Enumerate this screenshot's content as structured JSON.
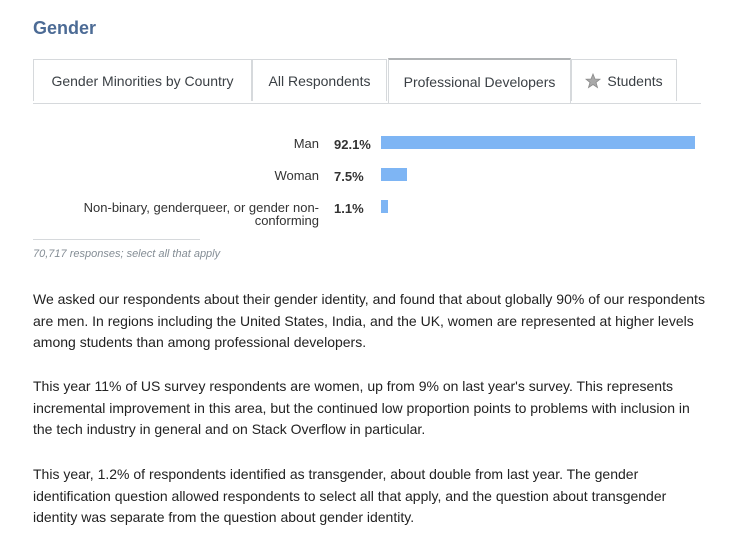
{
  "section_title": "Gender",
  "tabs": [
    {
      "label": "Gender Minorities by Country",
      "active": false
    },
    {
      "label": "All Respondents",
      "active": false
    },
    {
      "label": "Professional Developers",
      "active": true
    },
    {
      "label": "Students",
      "active": false,
      "icon": "star-icon"
    }
  ],
  "chart_data": {
    "type": "bar",
    "orientation": "horizontal",
    "categories": [
      "Man",
      "Woman",
      "Non-binary, genderqueer, or gender non-conforming"
    ],
    "category_lines": [
      [
        "Man"
      ],
      [
        "Woman"
      ],
      [
        "Non-binary, genderqueer, or gender non-",
        "conforming"
      ]
    ],
    "values": [
      92.1,
      7.5,
      1.1
    ],
    "value_labels": [
      "92.1%",
      "7.5%",
      "1.1%"
    ],
    "xlim": [
      0,
      92.1
    ],
    "grid": false,
    "bar_color": "#7eb5f4"
  },
  "responses_note": "70,717 responses; select all that apply",
  "paragraphs": [
    "We asked our respondents about their gender identity, and found that about globally 90% of our respondents are men. In regions including the United States, India, and the UK, women are represented at higher levels among students than among professional developers.",
    "This year 11% of US survey respondents are women, up from 9% on last year's survey. This represents incremental improvement in this area, but the continued low proportion points to problems with inclusion in the tech industry in general and on Stack Overflow in particular.",
    "This year, 1.2% of respondents identified as transgender, about double from last year. The gender identification question allowed respondents to select all that apply, and the question about transgender identity was separate from the question about gender identity."
  ]
}
